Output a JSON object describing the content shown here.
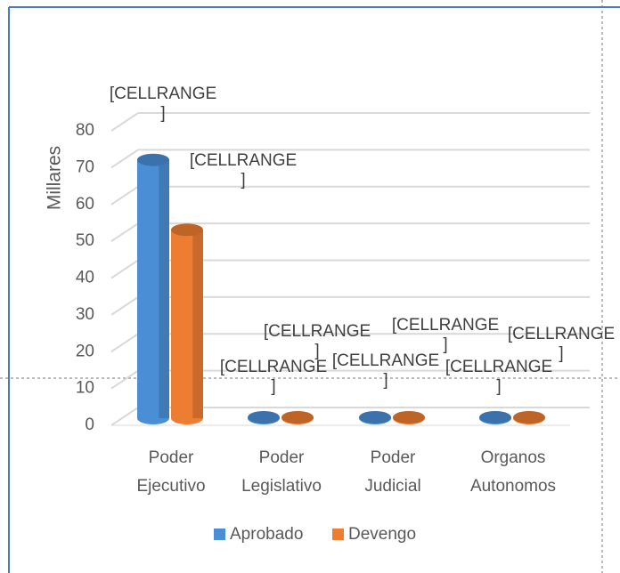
{
  "chart_data": {
    "type": "bar3d",
    "y_axis_label": "Millares",
    "categories": [
      "Poder Ejecutivo",
      "Poder Legislativo",
      "Poder Judicial",
      "Organos Autonomos"
    ],
    "series": [
      {
        "name": "Aprobado",
        "color": "#4a8fd6",
        "values": [
          75,
          1,
          2.5,
          0.8
        ],
        "data_labels": [
          "[CELLRANGE ]",
          "[CELLRANGE ]",
          "[CELLRANGE ]",
          "[CELLRANGE ]"
        ]
      },
      {
        "name": "Devengo",
        "color": "#ed7d31",
        "values": [
          56,
          0.8,
          1.8,
          0.8
        ],
        "data_labels": [
          "[CELLRANGE ]",
          "[CELLRANGE ]",
          "[CELLRANGE ]",
          "[CELLRANGE ]"
        ]
      }
    ],
    "ylim": [
      0,
      80
    ],
    "yticks": [
      0,
      10,
      20,
      30,
      40,
      50,
      60,
      70,
      80
    ],
    "grid": true,
    "legend": "bottom"
  }
}
